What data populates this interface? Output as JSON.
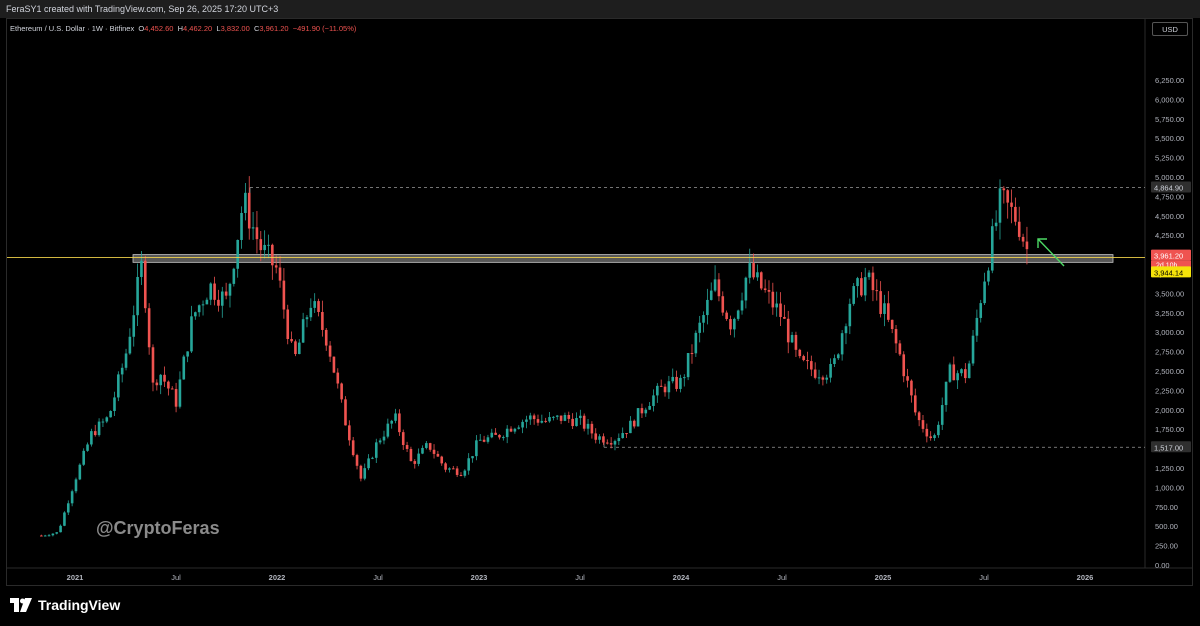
{
  "header": {
    "created_by": "FeraSY1 created with TradingView.com, Sep 26, 2025 17:20 UTC+3"
  },
  "legend": {
    "symbol": "Ethereum / U.S. Dollar · 1W · Bitfinex",
    "o_label": "O",
    "o_value": "4,452.60",
    "h_label": "H",
    "h_value": "4,462.20",
    "l_label": "L",
    "l_value": "3,832.00",
    "c_label": "C",
    "c_value": "3,961.20",
    "change": "−491.90 (−11.05%)"
  },
  "currency": "USD",
  "watermark": "@CryptoFeras",
  "footer_brand": "TradingView",
  "colors": {
    "up": "#26a69a",
    "down": "#ef5350",
    "price_line": "#f0d24a",
    "zone": "#9e9e9e",
    "arrow": "#4cd964",
    "background": "#000000"
  },
  "chart_data": {
    "type": "candlestick",
    "ylim": [
      0,
      6500
    ],
    "y_ticks": [
      "6,250.00",
      "6,000.00",
      "5,750.00",
      "5,500.00",
      "5,250.00",
      "5,000.00",
      "4,750.00",
      "4,500.00",
      "4,250.00",
      "4,000.00",
      "3,750.00",
      "3,500.00",
      "3,250.00",
      "3,000.00",
      "2,750.00",
      "2,500.00",
      "2,250.00",
      "2,000.00",
      "1,750.00",
      "1,500.00",
      "1,250.00",
      "1,000.00",
      "750.00",
      "500.00",
      "250.00",
      "0.00"
    ],
    "x_ticks": [
      {
        "label": "2021",
        "date": "2021-01"
      },
      {
        "label": "Jul",
        "date": "2021-07"
      },
      {
        "label": "2022",
        "date": "2022-01"
      },
      {
        "label": "Jul",
        "date": "2022-07"
      },
      {
        "label": "2023",
        "date": "2023-01"
      },
      {
        "label": "Jul",
        "date": "2023-07"
      },
      {
        "label": "2024",
        "date": "2024-01"
      },
      {
        "label": "Jul",
        "date": "2024-07"
      },
      {
        "label": "2025",
        "date": "2025-01"
      },
      {
        "label": "Jul",
        "date": "2025-07"
      },
      {
        "label": "2026",
        "date": "2026-01"
      }
    ],
    "path_points": [
      {
        "date": "2020-11",
        "close": 380
      },
      {
        "date": "2020-12",
        "close": 420
      },
      {
        "date": "2021-01",
        "close": 1100
      },
      {
        "date": "2021-02",
        "close": 1700
      },
      {
        "date": "2021-03",
        "close": 1900
      },
      {
        "date": "2021-04",
        "close": 2700
      },
      {
        "date": "2021-05",
        "close": 3900
      },
      {
        "date": "2021-05-20",
        "close": 2300
      },
      {
        "date": "2021-06",
        "close": 2500
      },
      {
        "date": "2021-07",
        "close": 2100
      },
      {
        "date": "2021-08",
        "close": 3200
      },
      {
        "date": "2021-09",
        "close": 3600
      },
      {
        "date": "2021-10",
        "close": 3400
      },
      {
        "date": "2021-11",
        "close": 4700
      },
      {
        "date": "2021-12",
        "close": 4100
      },
      {
        "date": "2022-01",
        "close": 3800
      },
      {
        "date": "2022-02",
        "close": 2600
      },
      {
        "date": "2022-03",
        "close": 3400
      },
      {
        "date": "2022-04",
        "close": 2900
      },
      {
        "date": "2022-05",
        "close": 1900
      },
      {
        "date": "2022-06",
        "close": 1100
      },
      {
        "date": "2022-07",
        "close": 1600
      },
      {
        "date": "2022-08",
        "close": 1900
      },
      {
        "date": "2022-09",
        "close": 1300
      },
      {
        "date": "2022-10",
        "close": 1550
      },
      {
        "date": "2022-11",
        "close": 1250
      },
      {
        "date": "2022-12",
        "close": 1200
      },
      {
        "date": "2023-01",
        "close": 1600
      },
      {
        "date": "2023-02",
        "close": 1650
      },
      {
        "date": "2023-03",
        "close": 1800
      },
      {
        "date": "2023-04",
        "close": 1900
      },
      {
        "date": "2023-05",
        "close": 1850
      },
      {
        "date": "2023-06",
        "close": 1900
      },
      {
        "date": "2023-07",
        "close": 1850
      },
      {
        "date": "2023-08",
        "close": 1650
      },
      {
        "date": "2023-09",
        "close": 1620
      },
      {
        "date": "2023-10",
        "close": 1800
      },
      {
        "date": "2023-11",
        "close": 2100
      },
      {
        "date": "2023-12",
        "close": 2300
      },
      {
        "date": "2024-01",
        "close": 2350
      },
      {
        "date": "2024-02",
        "close": 3000
      },
      {
        "date": "2024-03",
        "close": 3600
      },
      {
        "date": "2024-04",
        "close": 3100
      },
      {
        "date": "2024-05",
        "close": 3800
      },
      {
        "date": "2024-06",
        "close": 3500
      },
      {
        "date": "2024-07",
        "close": 3200
      },
      {
        "date": "2024-08",
        "close": 2600
      },
      {
        "date": "2024-09",
        "close": 2500
      },
      {
        "date": "2024-10",
        "close": 2500
      },
      {
        "date": "2024-11",
        "close": 3400
      },
      {
        "date": "2024-12",
        "close": 3700
      },
      {
        "date": "2025-01",
        "close": 3300
      },
      {
        "date": "2025-02",
        "close": 2700
      },
      {
        "date": "2025-03",
        "close": 1900
      },
      {
        "date": "2025-04",
        "close": 1600
      },
      {
        "date": "2025-05",
        "close": 2500
      },
      {
        "date": "2025-06",
        "close": 2450
      },
      {
        "date": "2025-07",
        "close": 3700
      },
      {
        "date": "2025-08",
        "close": 4700
      },
      {
        "date": "2025-09",
        "close": 4450
      },
      {
        "date": "2025-09-22",
        "close": 3961
      }
    ],
    "resistance_zone": [
      3900,
      4000
    ],
    "top_level": "4,864.90",
    "bottom_level": "1,517.00",
    "current_price": "3,961.20",
    "countdown": "2d 10h",
    "mark_price": "3,944.14"
  }
}
